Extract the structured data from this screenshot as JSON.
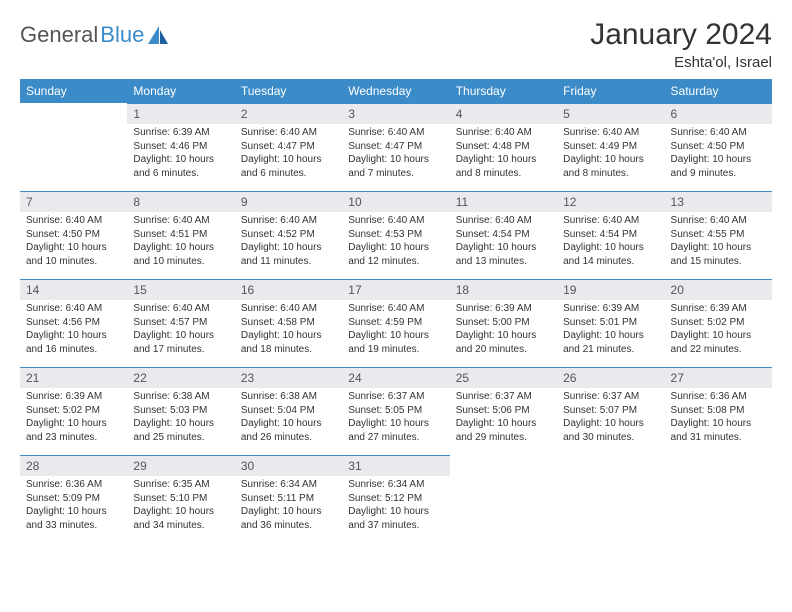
{
  "logo": {
    "general": "General",
    "blue": "Blue"
  },
  "title": "January 2024",
  "location": "Eshta'ol, Israel",
  "colors": {
    "header_bg": "#3b8bc9",
    "header_text": "#ffffff",
    "daynum_bg": "#e8eaed",
    "daynum_border": "#3b8bc9",
    "body_text": "#333333",
    "page_bg": "#ffffff"
  },
  "weekdays": [
    "Sunday",
    "Monday",
    "Tuesday",
    "Wednesday",
    "Thursday",
    "Friday",
    "Saturday"
  ],
  "weeks": [
    [
      {
        "empty": true
      },
      {
        "n": "1",
        "sunrise": "Sunrise: 6:39 AM",
        "sunset": "Sunset: 4:46 PM",
        "day1": "Daylight: 10 hours",
        "day2": "and 6 minutes."
      },
      {
        "n": "2",
        "sunrise": "Sunrise: 6:40 AM",
        "sunset": "Sunset: 4:47 PM",
        "day1": "Daylight: 10 hours",
        "day2": "and 6 minutes."
      },
      {
        "n": "3",
        "sunrise": "Sunrise: 6:40 AM",
        "sunset": "Sunset: 4:47 PM",
        "day1": "Daylight: 10 hours",
        "day2": "and 7 minutes."
      },
      {
        "n": "4",
        "sunrise": "Sunrise: 6:40 AM",
        "sunset": "Sunset: 4:48 PM",
        "day1": "Daylight: 10 hours",
        "day2": "and 8 minutes."
      },
      {
        "n": "5",
        "sunrise": "Sunrise: 6:40 AM",
        "sunset": "Sunset: 4:49 PM",
        "day1": "Daylight: 10 hours",
        "day2": "and 8 minutes."
      },
      {
        "n": "6",
        "sunrise": "Sunrise: 6:40 AM",
        "sunset": "Sunset: 4:50 PM",
        "day1": "Daylight: 10 hours",
        "day2": "and 9 minutes."
      }
    ],
    [
      {
        "n": "7",
        "sunrise": "Sunrise: 6:40 AM",
        "sunset": "Sunset: 4:50 PM",
        "day1": "Daylight: 10 hours",
        "day2": "and 10 minutes."
      },
      {
        "n": "8",
        "sunrise": "Sunrise: 6:40 AM",
        "sunset": "Sunset: 4:51 PM",
        "day1": "Daylight: 10 hours",
        "day2": "and 10 minutes."
      },
      {
        "n": "9",
        "sunrise": "Sunrise: 6:40 AM",
        "sunset": "Sunset: 4:52 PM",
        "day1": "Daylight: 10 hours",
        "day2": "and 11 minutes."
      },
      {
        "n": "10",
        "sunrise": "Sunrise: 6:40 AM",
        "sunset": "Sunset: 4:53 PM",
        "day1": "Daylight: 10 hours",
        "day2": "and 12 minutes."
      },
      {
        "n": "11",
        "sunrise": "Sunrise: 6:40 AM",
        "sunset": "Sunset: 4:54 PM",
        "day1": "Daylight: 10 hours",
        "day2": "and 13 minutes."
      },
      {
        "n": "12",
        "sunrise": "Sunrise: 6:40 AM",
        "sunset": "Sunset: 4:54 PM",
        "day1": "Daylight: 10 hours",
        "day2": "and 14 minutes."
      },
      {
        "n": "13",
        "sunrise": "Sunrise: 6:40 AM",
        "sunset": "Sunset: 4:55 PM",
        "day1": "Daylight: 10 hours",
        "day2": "and 15 minutes."
      }
    ],
    [
      {
        "n": "14",
        "sunrise": "Sunrise: 6:40 AM",
        "sunset": "Sunset: 4:56 PM",
        "day1": "Daylight: 10 hours",
        "day2": "and 16 minutes."
      },
      {
        "n": "15",
        "sunrise": "Sunrise: 6:40 AM",
        "sunset": "Sunset: 4:57 PM",
        "day1": "Daylight: 10 hours",
        "day2": "and 17 minutes."
      },
      {
        "n": "16",
        "sunrise": "Sunrise: 6:40 AM",
        "sunset": "Sunset: 4:58 PM",
        "day1": "Daylight: 10 hours",
        "day2": "and 18 minutes."
      },
      {
        "n": "17",
        "sunrise": "Sunrise: 6:40 AM",
        "sunset": "Sunset: 4:59 PM",
        "day1": "Daylight: 10 hours",
        "day2": "and 19 minutes."
      },
      {
        "n": "18",
        "sunrise": "Sunrise: 6:39 AM",
        "sunset": "Sunset: 5:00 PM",
        "day1": "Daylight: 10 hours",
        "day2": "and 20 minutes."
      },
      {
        "n": "19",
        "sunrise": "Sunrise: 6:39 AM",
        "sunset": "Sunset: 5:01 PM",
        "day1": "Daylight: 10 hours",
        "day2": "and 21 minutes."
      },
      {
        "n": "20",
        "sunrise": "Sunrise: 6:39 AM",
        "sunset": "Sunset: 5:02 PM",
        "day1": "Daylight: 10 hours",
        "day2": "and 22 minutes."
      }
    ],
    [
      {
        "n": "21",
        "sunrise": "Sunrise: 6:39 AM",
        "sunset": "Sunset: 5:02 PM",
        "day1": "Daylight: 10 hours",
        "day2": "and 23 minutes."
      },
      {
        "n": "22",
        "sunrise": "Sunrise: 6:38 AM",
        "sunset": "Sunset: 5:03 PM",
        "day1": "Daylight: 10 hours",
        "day2": "and 25 minutes."
      },
      {
        "n": "23",
        "sunrise": "Sunrise: 6:38 AM",
        "sunset": "Sunset: 5:04 PM",
        "day1": "Daylight: 10 hours",
        "day2": "and 26 minutes."
      },
      {
        "n": "24",
        "sunrise": "Sunrise: 6:37 AM",
        "sunset": "Sunset: 5:05 PM",
        "day1": "Daylight: 10 hours",
        "day2": "and 27 minutes."
      },
      {
        "n": "25",
        "sunrise": "Sunrise: 6:37 AM",
        "sunset": "Sunset: 5:06 PM",
        "day1": "Daylight: 10 hours",
        "day2": "and 29 minutes."
      },
      {
        "n": "26",
        "sunrise": "Sunrise: 6:37 AM",
        "sunset": "Sunset: 5:07 PM",
        "day1": "Daylight: 10 hours",
        "day2": "and 30 minutes."
      },
      {
        "n": "27",
        "sunrise": "Sunrise: 6:36 AM",
        "sunset": "Sunset: 5:08 PM",
        "day1": "Daylight: 10 hours",
        "day2": "and 31 minutes."
      }
    ],
    [
      {
        "n": "28",
        "sunrise": "Sunrise: 6:36 AM",
        "sunset": "Sunset: 5:09 PM",
        "day1": "Daylight: 10 hours",
        "day2": "and 33 minutes."
      },
      {
        "n": "29",
        "sunrise": "Sunrise: 6:35 AM",
        "sunset": "Sunset: 5:10 PM",
        "day1": "Daylight: 10 hours",
        "day2": "and 34 minutes."
      },
      {
        "n": "30",
        "sunrise": "Sunrise: 6:34 AM",
        "sunset": "Sunset: 5:11 PM",
        "day1": "Daylight: 10 hours",
        "day2": "and 36 minutes."
      },
      {
        "n": "31",
        "sunrise": "Sunrise: 6:34 AM",
        "sunset": "Sunset: 5:12 PM",
        "day1": "Daylight: 10 hours",
        "day2": "and 37 minutes."
      },
      {
        "empty": true
      },
      {
        "empty": true
      },
      {
        "empty": true
      }
    ]
  ]
}
